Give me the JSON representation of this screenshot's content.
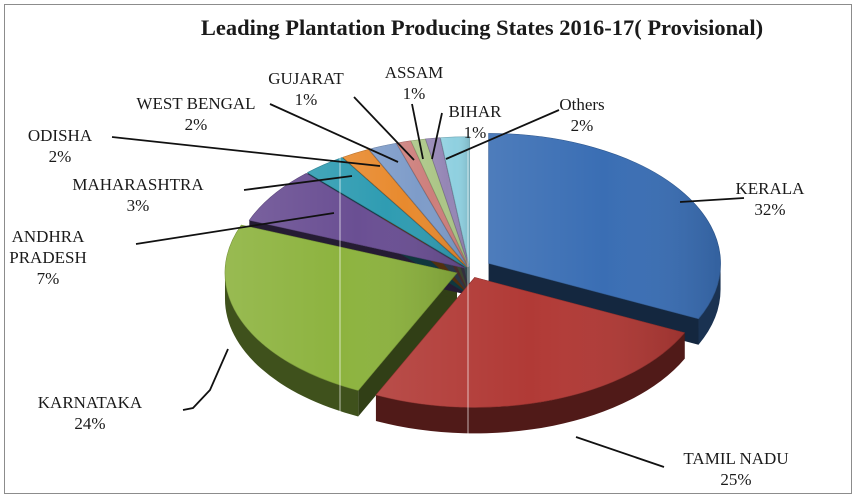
{
  "chart_data": {
    "type": "pie",
    "title": "Leading  Plantation Producing States 2016-17( Provisional)",
    "slices": [
      {
        "name": "KERALA",
        "value": 32,
        "percent_label": "32%",
        "color": "#3a6eb4"
      },
      {
        "name": "TAMIL NADU",
        "value": 25,
        "percent_label": "25%",
        "color": "#b13a36"
      },
      {
        "name": "KARNATAKA",
        "value": 24,
        "percent_label": "24%",
        "color": "#8db33f"
      },
      {
        "name": "ANDHRA PRADESH",
        "value": 7,
        "percent_label": "7%",
        "color": "#6a4f93"
      },
      {
        "name": "MAHARASHTRA",
        "value": 3,
        "percent_label": "3%",
        "color": "#2f9cb2"
      },
      {
        "name": "ODISHA",
        "value": 2,
        "percent_label": "2%",
        "color": "#e88a2e"
      },
      {
        "name": "WEST BENGAL",
        "value": 2,
        "percent_label": "2%",
        "color": "#7e9cc9"
      },
      {
        "name": "GUJARAT",
        "value": 1,
        "percent_label": "1%",
        "color": "#cd7f7c"
      },
      {
        "name": "ASSAM",
        "value": 1,
        "percent_label": "1%",
        "color": "#acc687"
      },
      {
        "name": "BIHAR",
        "value": 1,
        "percent_label": "1%",
        "color": "#9586b5"
      },
      {
        "name": "Others",
        "value": 2,
        "percent_label": "2%",
        "color": "#8fd0e0"
      }
    ],
    "labels": [
      {
        "lines": [
          "KERALA",
          "32%"
        ]
      },
      {
        "lines": [
          "TAMIL NADU",
          "25%"
        ]
      },
      {
        "lines": [
          "KARNATAKA",
          "24%"
        ]
      },
      {
        "lines": [
          "ANDHRA",
          "PRADESH",
          "7%"
        ]
      },
      {
        "lines": [
          "MAHARASHTRA",
          "3%"
        ]
      },
      {
        "lines": [
          "ODISHA",
          "2%"
        ]
      },
      {
        "lines": [
          "WEST BENGAL",
          "2%"
        ]
      },
      {
        "lines": [
          "GUJARAT",
          "1%"
        ]
      },
      {
        "lines": [
          "ASSAM",
          "1%"
        ]
      },
      {
        "lines": [
          "BIHAR",
          "1%"
        ]
      },
      {
        "lines": [
          "Others",
          "2%"
        ]
      }
    ]
  }
}
